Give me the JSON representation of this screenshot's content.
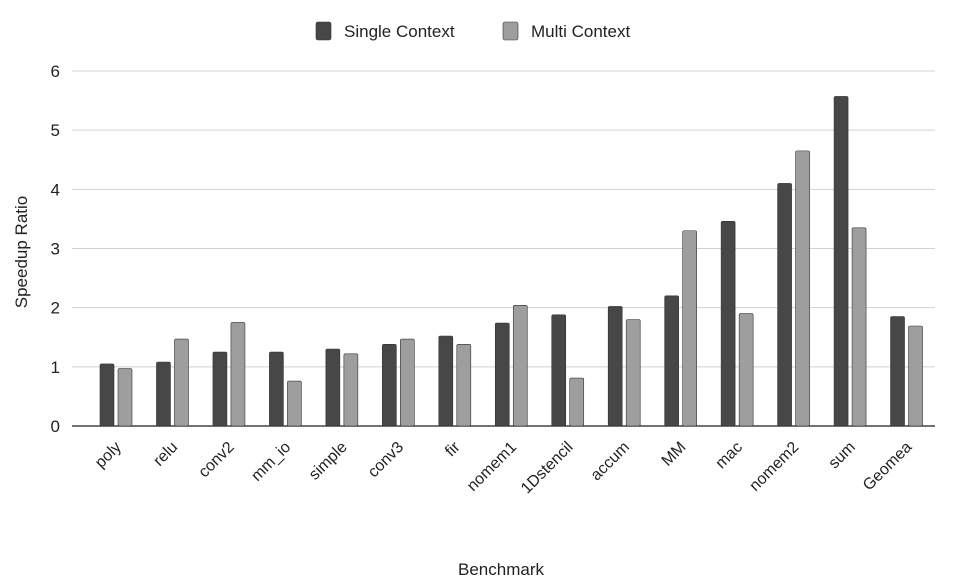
{
  "chart_data": {
    "type": "bar",
    "title": "",
    "xlabel": "Benchmark",
    "ylabel": "Speedup Ratio",
    "ylim": [
      0,
      6
    ],
    "yticks": [
      0,
      1,
      2,
      3,
      4,
      5,
      6
    ],
    "grid": true,
    "legend_position": "top-center",
    "categories": [
      "poly",
      "relu",
      "conv2",
      "mm_io",
      "simple",
      "conv3",
      "fir",
      "nomem1",
      "1Dstencil",
      "accum",
      "MM",
      "mac",
      "nomem2",
      "sum",
      "Geomea"
    ],
    "series": [
      {
        "name": "Single Context",
        "color": "#474747",
        "values": [
          1.05,
          1.08,
          1.25,
          1.25,
          1.3,
          1.38,
          1.52,
          1.74,
          1.88,
          2.02,
          2.2,
          3.46,
          4.1,
          5.57,
          1.85
        ]
      },
      {
        "name": "Multi Context",
        "color": "#9e9e9e",
        "values": [
          0.97,
          1.47,
          1.75,
          0.76,
          1.22,
          1.47,
          1.38,
          2.04,
          0.81,
          1.8,
          3.3,
          1.9,
          4.65,
          3.35,
          1.69
        ]
      }
    ]
  }
}
